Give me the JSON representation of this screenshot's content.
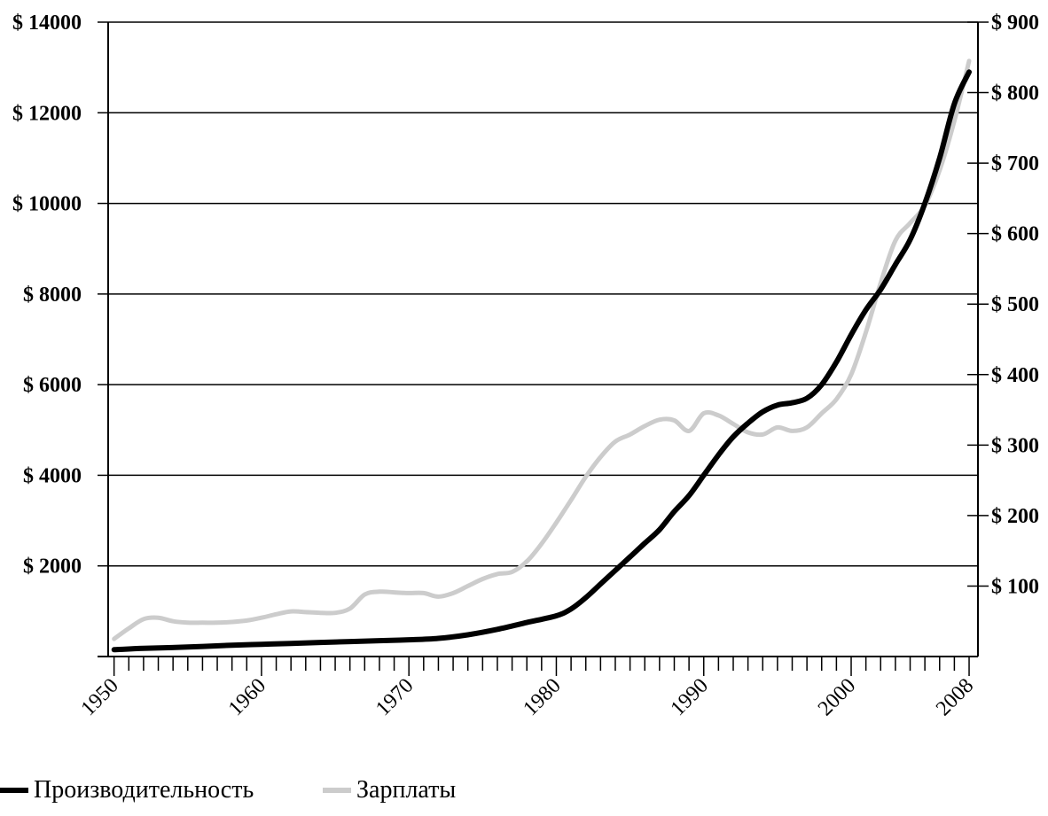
{
  "chart_data": {
    "type": "line",
    "title": "",
    "xlabel": "",
    "ylabel": "",
    "x_ticks": [
      "1950",
      "1960",
      "1970",
      "1980",
      "1990",
      "2000",
      "2008"
    ],
    "xlim": [
      1949.6,
      2008.6
    ],
    "y_left_ticks": [
      "$ 2000",
      "$ 4000",
      "$ 6000",
      "$ 8000",
      "$ 10000",
      "$ 12000",
      "$ 14000"
    ],
    "y_left_values": [
      2000,
      4000,
      6000,
      8000,
      10000,
      12000,
      14000
    ],
    "ylim_left": [
      0,
      14000
    ],
    "y_right_ticks": [
      "$ 100",
      "$ 200",
      "$ 300",
      "$ 400",
      "$ 500",
      "$ 600",
      "$ 700",
      "$ 800",
      "$ 900"
    ],
    "y_right_values": [
      100,
      200,
      300,
      400,
      500,
      600,
      700,
      800,
      900
    ],
    "ylim_right": [
      0,
      900
    ],
    "grid": true,
    "legend_position": "bottom-left",
    "series": [
      {
        "name": "Производительность",
        "axis": "left",
        "color": "#000000",
        "points": [
          [
            1950,
            150
          ],
          [
            1952,
            180
          ],
          [
            1955,
            210
          ],
          [
            1958,
            250
          ],
          [
            1960,
            270
          ],
          [
            1962,
            290
          ],
          [
            1965,
            320
          ],
          [
            1968,
            350
          ],
          [
            1970,
            370
          ],
          [
            1972,
            400
          ],
          [
            1974,
            480
          ],
          [
            1976,
            600
          ],
          [
            1978,
            750
          ],
          [
            1980,
            900
          ],
          [
            1981,
            1050
          ],
          [
            1982,
            1300
          ],
          [
            1983,
            1600
          ],
          [
            1984,
            1900
          ],
          [
            1985,
            2200
          ],
          [
            1986,
            2500
          ],
          [
            1987,
            2800
          ],
          [
            1988,
            3200
          ],
          [
            1989,
            3550
          ],
          [
            1990,
            4000
          ],
          [
            1991,
            4450
          ],
          [
            1992,
            4850
          ],
          [
            1993,
            5150
          ],
          [
            1994,
            5400
          ],
          [
            1995,
            5550
          ],
          [
            1996,
            5600
          ],
          [
            1997,
            5700
          ],
          [
            1998,
            6000
          ],
          [
            1999,
            6500
          ],
          [
            2000,
            7100
          ],
          [
            2001,
            7650
          ],
          [
            2002,
            8100
          ],
          [
            2003,
            8650
          ],
          [
            2004,
            9200
          ],
          [
            2005,
            10000
          ],
          [
            2006,
            11000
          ],
          [
            2007,
            12200
          ],
          [
            2008,
            12900
          ]
        ]
      },
      {
        "name": "Зарплаты",
        "axis": "right",
        "color": "#cccccc",
        "points": [
          [
            1950,
            25
          ],
          [
            1951,
            40
          ],
          [
            1952,
            53
          ],
          [
            1953,
            55
          ],
          [
            1954,
            50
          ],
          [
            1955,
            48
          ],
          [
            1956,
            48
          ],
          [
            1957,
            48
          ],
          [
            1958,
            49
          ],
          [
            1959,
            51
          ],
          [
            1960,
            55
          ],
          [
            1961,
            60
          ],
          [
            1962,
            64
          ],
          [
            1963,
            63
          ],
          [
            1964,
            62
          ],
          [
            1965,
            62
          ],
          [
            1966,
            68
          ],
          [
            1967,
            88
          ],
          [
            1968,
            92
          ],
          [
            1969,
            91
          ],
          [
            1970,
            90
          ],
          [
            1971,
            90
          ],
          [
            1972,
            85
          ],
          [
            1973,
            90
          ],
          [
            1974,
            100
          ],
          [
            1975,
            110
          ],
          [
            1976,
            117
          ],
          [
            1977,
            120
          ],
          [
            1978,
            135
          ],
          [
            1979,
            160
          ],
          [
            1980,
            190
          ],
          [
            1981,
            222
          ],
          [
            1982,
            255
          ],
          [
            1983,
            283
          ],
          [
            1984,
            305
          ],
          [
            1985,
            315
          ],
          [
            1986,
            327
          ],
          [
            1987,
            336
          ],
          [
            1988,
            335
          ],
          [
            1989,
            320
          ],
          [
            1990,
            345
          ],
          [
            1991,
            342
          ],
          [
            1992,
            330
          ],
          [
            1993,
            318
          ],
          [
            1994,
            315
          ],
          [
            1995,
            325
          ],
          [
            1996,
            320
          ],
          [
            1997,
            325
          ],
          [
            1998,
            345
          ],
          [
            1999,
            365
          ],
          [
            2000,
            400
          ],
          [
            2001,
            460
          ],
          [
            2002,
            530
          ],
          [
            2003,
            590
          ],
          [
            2004,
            615
          ],
          [
            2005,
            640
          ],
          [
            2006,
            690
          ],
          [
            2007,
            760
          ],
          [
            2008,
            845
          ]
        ]
      }
    ]
  },
  "legend": {
    "items": [
      {
        "label": "Производительность",
        "color": "#000000"
      },
      {
        "label": "Зарплаты",
        "color": "#cccccc"
      }
    ]
  }
}
